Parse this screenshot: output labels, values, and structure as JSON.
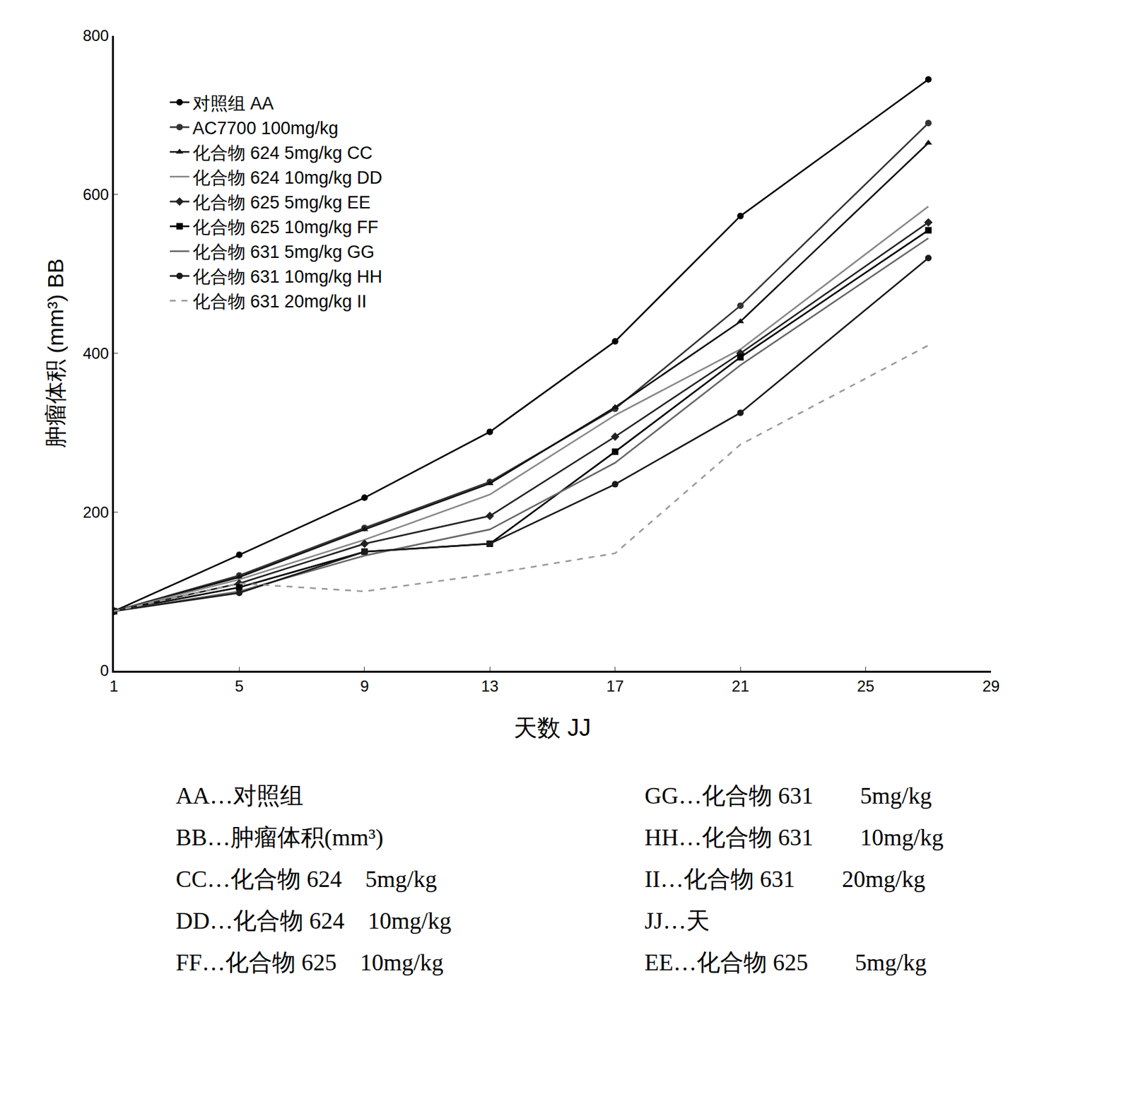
{
  "chart_data": {
    "type": "line",
    "x_label": "天数 JJ",
    "y_label": "肿瘤体积 (mm³) BB",
    "x": [
      1,
      5,
      9,
      13,
      17,
      21,
      27
    ],
    "xlim": [
      1,
      29
    ],
    "xticks": [
      1,
      5,
      9,
      13,
      17,
      21,
      25,
      29
    ],
    "ylim": [
      0,
      800
    ],
    "yticks": [
      0,
      200,
      400,
      600,
      800
    ],
    "grid": false,
    "legend": "top-left",
    "series": [
      {
        "name": "对照组 AA",
        "color": "#000000",
        "marker": "circle",
        "line_style": "solid",
        "values": [
          75,
          146,
          218,
          301,
          415,
          573,
          745
        ]
      },
      {
        "name": "AC7700 100mg/kg",
        "color": "#333333",
        "marker": "circle",
        "line_style": "solid",
        "values": [
          75,
          120,
          180,
          238,
          330,
          460,
          690
        ]
      },
      {
        "name": "化合物 624 5mg/kg CC",
        "color": "#111111",
        "marker": "triangle-up",
        "line_style": "solid",
        "values": [
          75,
          118,
          178,
          236,
          332,
          440,
          665
        ]
      },
      {
        "name": "化合物 624 10mg/kg DD",
        "color": "#888888",
        "marker": "none",
        "line_style": "solid",
        "values": [
          75,
          115,
          165,
          222,
          322,
          405,
          585
        ]
      },
      {
        "name": "化合物 625 5mg/kg EE",
        "color": "#222222",
        "marker": "diamond",
        "line_style": "solid",
        "values": [
          75,
          110,
          160,
          195,
          295,
          400,
          565
        ]
      },
      {
        "name": "化合物 625 10mg/kg FF",
        "color": "#000000",
        "marker": "square",
        "line_style": "solid",
        "values": [
          75,
          105,
          150,
          160,
          276,
          395,
          555
        ]
      },
      {
        "name": "化合物 631 5mg/kg GG",
        "color": "#666666",
        "marker": "none",
        "line_style": "solid",
        "values": [
          75,
          100,
          145,
          178,
          262,
          385,
          545
        ]
      },
      {
        "name": "化合物 631 10mg/kg HH",
        "color": "#1a1a1a",
        "marker": "circle",
        "line_style": "solid",
        "values": [
          75,
          98,
          150,
          160,
          235,
          325,
          520
        ]
      },
      {
        "name": "化合物 631 20mg/kg II",
        "color": "#999999",
        "marker": "none",
        "line_style": "dash",
        "values": [
          75,
          110,
          100,
          122,
          148,
          285,
          410
        ]
      }
    ]
  },
  "key": [
    [
      "AA…对照组",
      "GG…化合物 631　　5mg/kg"
    ],
    [
      "BB…肿瘤体积(mm³)",
      "HH…化合物 631　　10mg/kg"
    ],
    [
      "CC…化合物 624　5mg/kg",
      "II…化合物 631　　20mg/kg"
    ],
    [
      "DD…化合物 624　10mg/kg",
      "JJ…天"
    ],
    [
      "FF…化合物 625　10mg/kg",
      "EE…化合物 625　　5mg/kg"
    ]
  ]
}
